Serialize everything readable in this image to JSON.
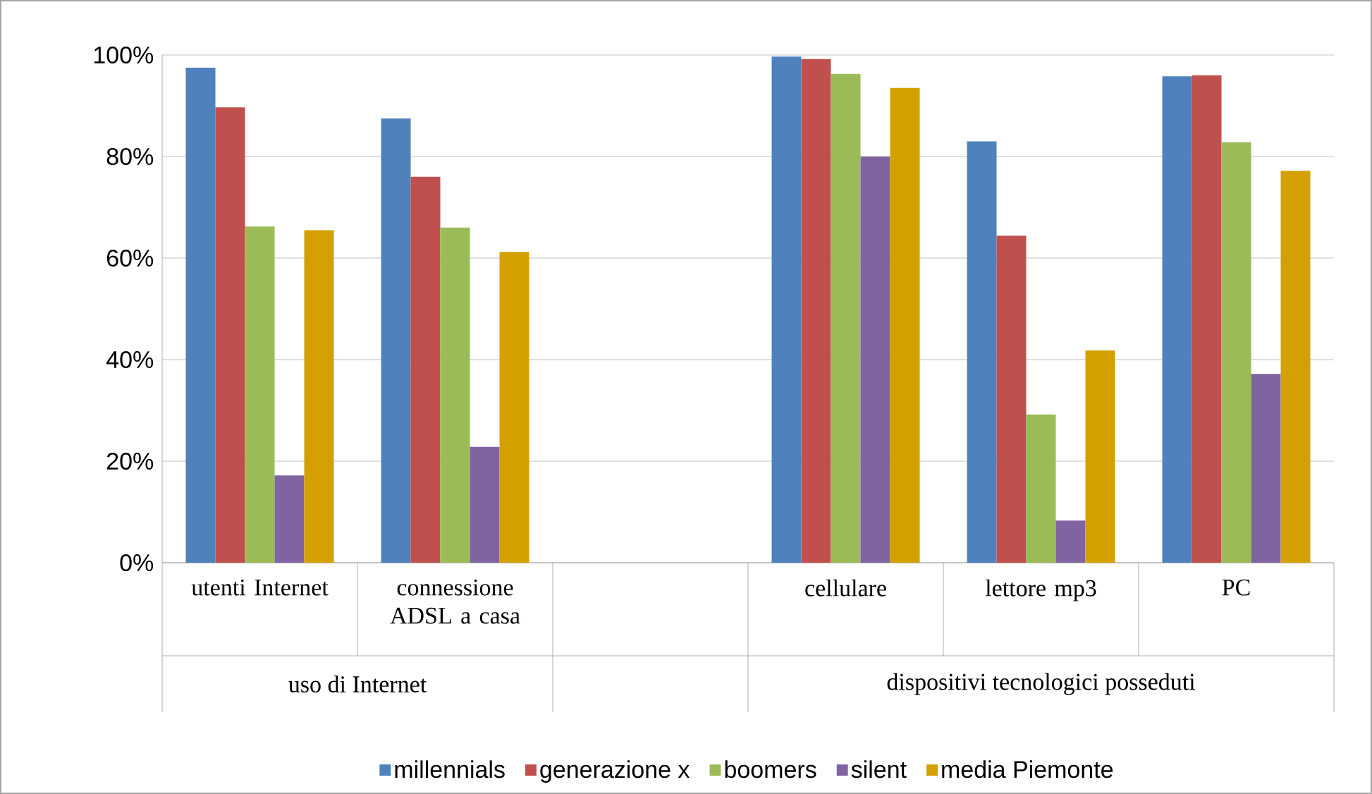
{
  "chart_data": {
    "type": "bar",
    "categories": [
      "utenti Internet",
      "connessione ADSL a casa",
      null,
      "cellulare",
      "lettore mp3",
      "PC"
    ],
    "series": [
      {
        "name": "millennials",
        "color": "#4f81bd",
        "values": [
          97.5,
          87.5,
          null,
          99.7,
          83,
          95.8
        ]
      },
      {
        "name": "generazione x",
        "color": "#c0504d",
        "values": [
          89.7,
          76,
          null,
          99.2,
          64.4,
          96
        ]
      },
      {
        "name": "boomers",
        "color": "#9bbb59",
        "values": [
          66.2,
          66,
          null,
          96.3,
          29.2,
          82.8
        ]
      },
      {
        "name": "silent",
        "color": "#8064a2",
        "values": [
          17.2,
          22.8,
          null,
          80,
          8.3,
          37.2
        ]
      },
      {
        "name": "media Piemonte",
        "color": "#d4a000",
        "values": [
          65.5,
          61.2,
          null,
          93.5,
          41.8,
          77.2
        ]
      }
    ],
    "annotations": [
      "uso di Internet",
      "dispositivi tecnologici posseduti"
    ],
    "ylim": [
      0,
      100
    ],
    "yticks": [
      {
        "value": 0,
        "label": "0%"
      },
      {
        "value": 20,
        "label": "20%"
      },
      {
        "value": 40,
        "label": "40%"
      },
      {
        "value": 60,
        "label": "60%"
      },
      {
        "value": 80,
        "label": "80%"
      },
      {
        "value": 100,
        "label": "100%"
      }
    ],
    "grid": "y",
    "legend": "bottom"
  }
}
